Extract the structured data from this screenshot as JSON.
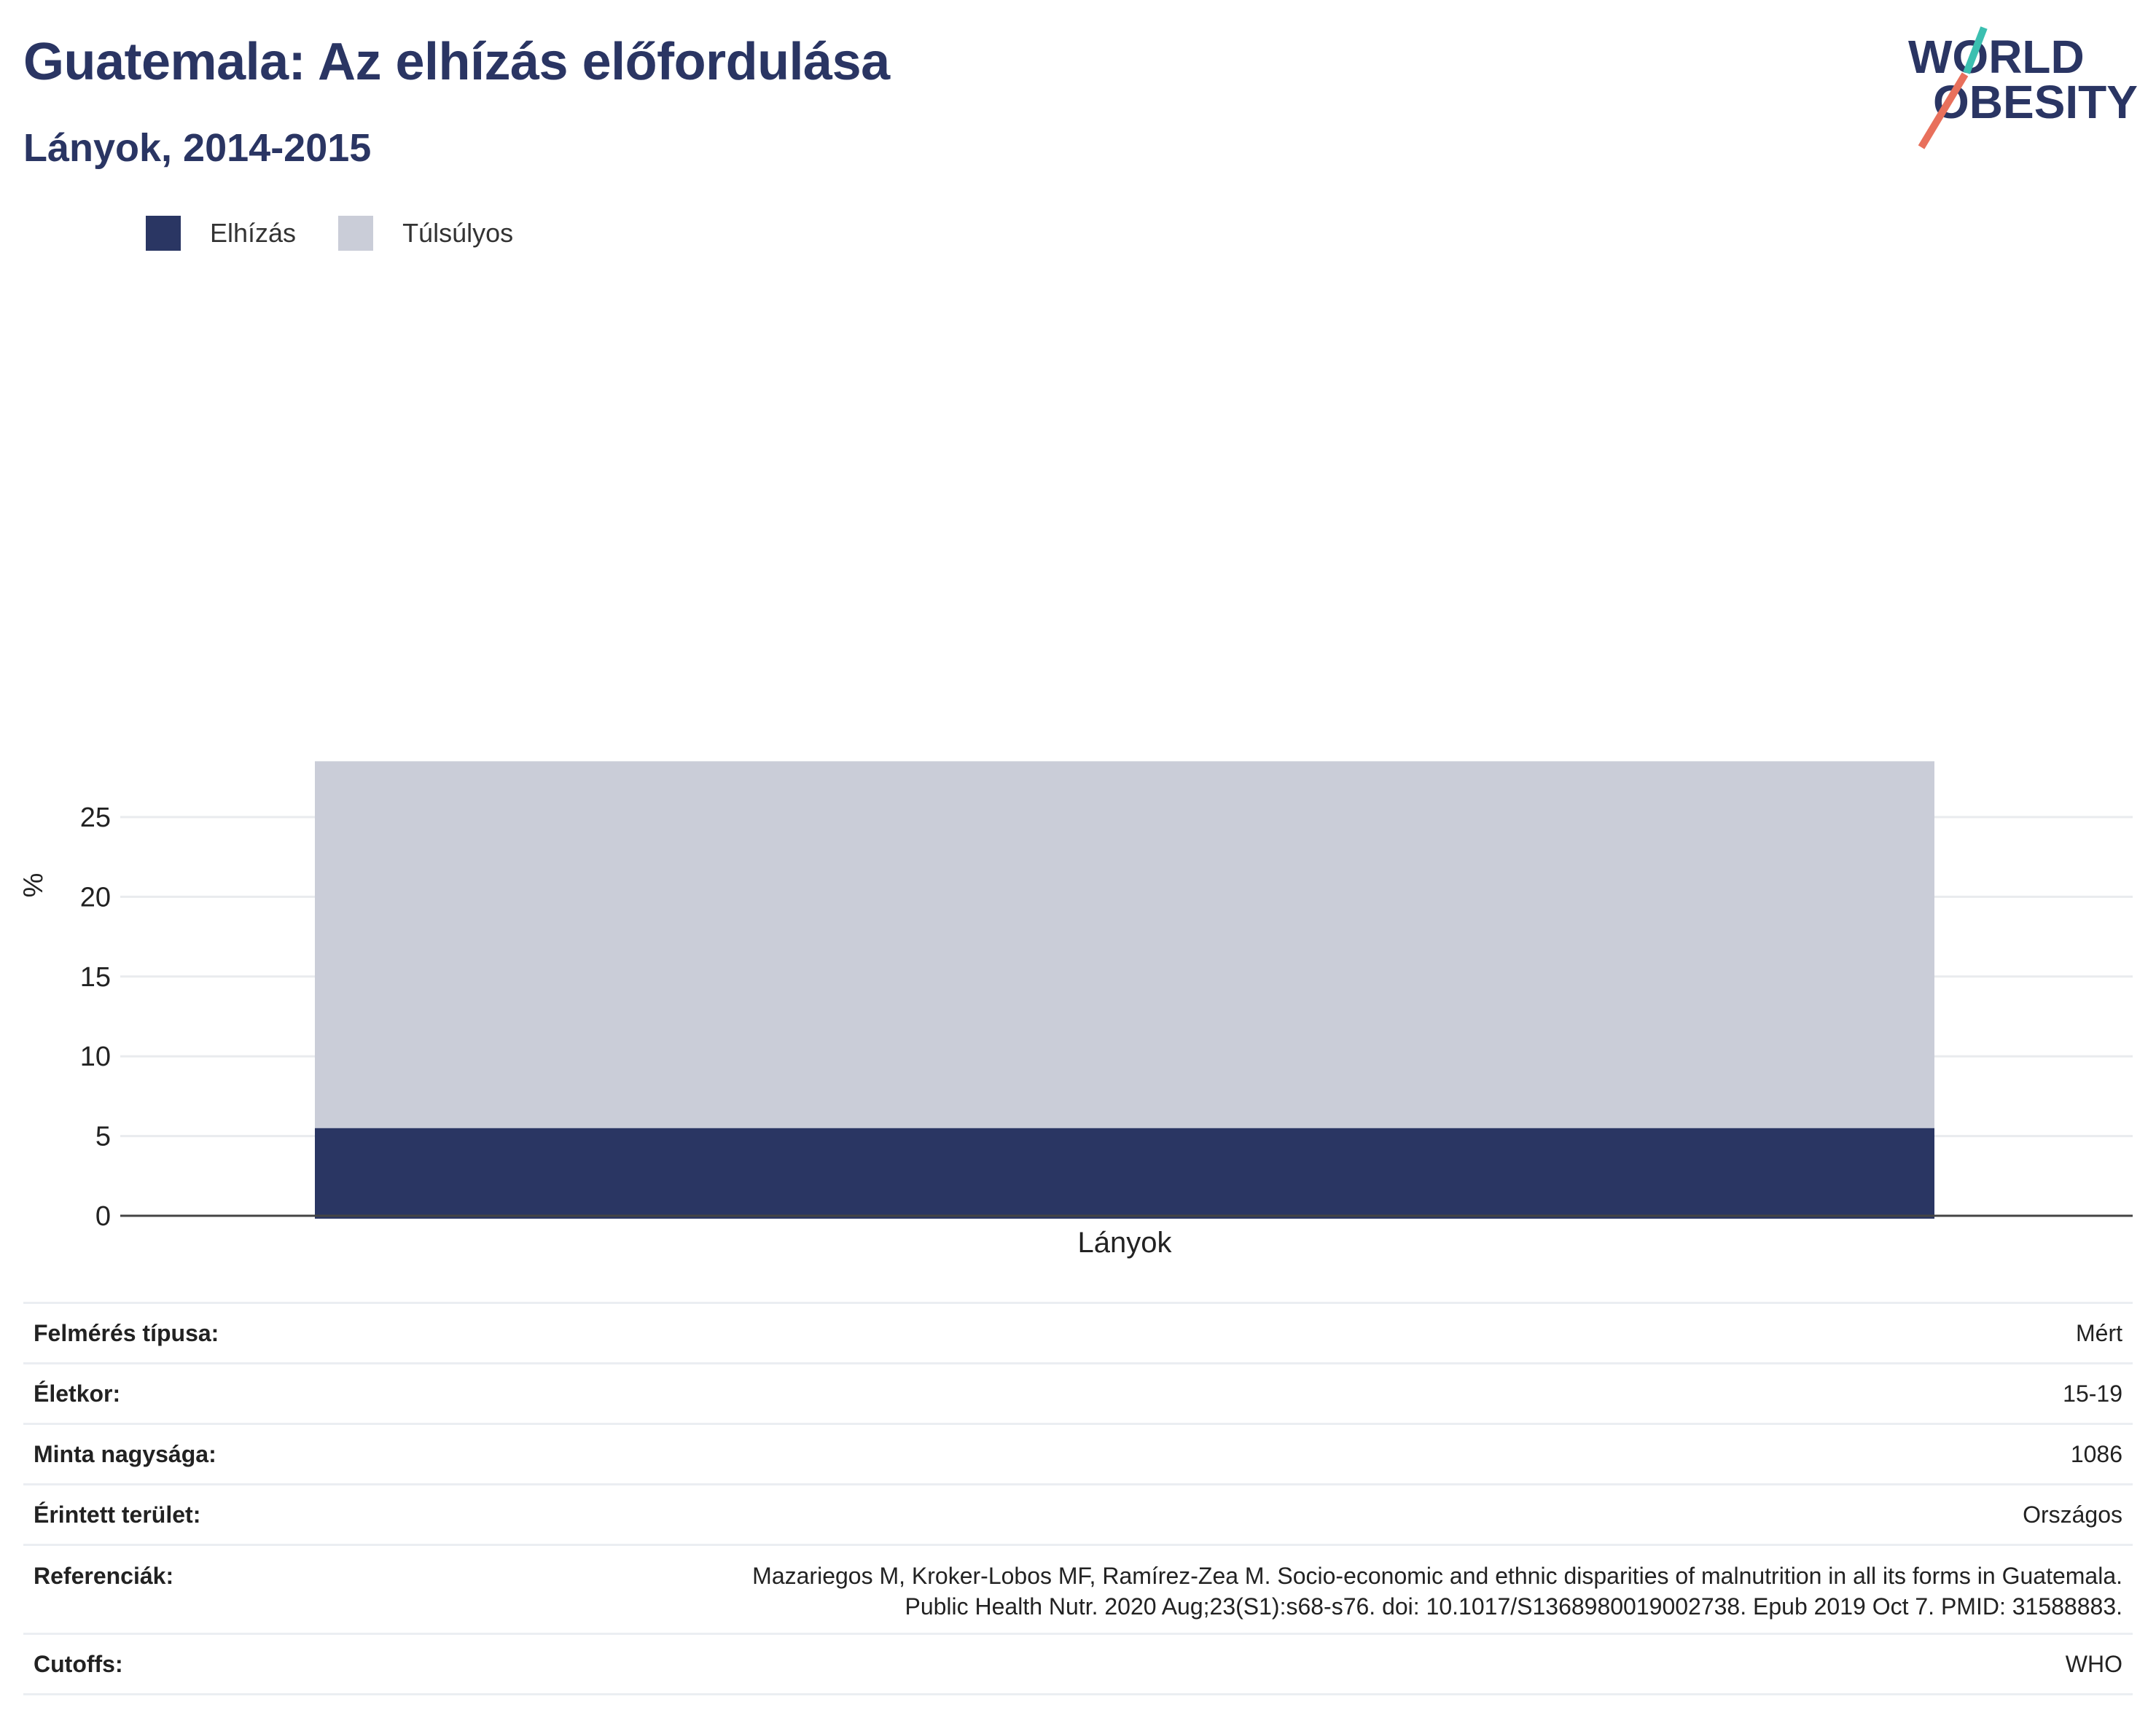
{
  "header": {
    "title": "Guatemala: Az elhízás előfordulása",
    "subtitle": "Lányok, 2014-2015"
  },
  "logo": {
    "line1": "WORLD",
    "line2": "OBESITY"
  },
  "legend": [
    {
      "label": "Elhízás",
      "color": "#2a3663"
    },
    {
      "label": "Túlsúlyos",
      "color": "#cacdd8"
    }
  ],
  "chart_data": {
    "type": "bar",
    "stacked": true,
    "categories": [
      "Lányok"
    ],
    "series": [
      {
        "name": "Elhízás",
        "values": [
          5.5
        ],
        "color": "#2a3663"
      },
      {
        "name": "Túlsúlyos",
        "values": [
          23.0
        ],
        "color": "#cacdd8"
      }
    ],
    "xlabel": "",
    "ylabel": "%",
    "ylim": [
      0,
      29
    ],
    "yticks": [
      "0",
      "5",
      "10",
      "15",
      "20",
      "25"
    ],
    "grid": true,
    "legend_position": "top-left"
  },
  "details": [
    {
      "label": "Felmérés típusa:",
      "value": "Mért"
    },
    {
      "label": "Életkor:",
      "value": "15-19"
    },
    {
      "label": "Minta nagysága:",
      "value": "1086"
    },
    {
      "label": "Érintett terület:",
      "value": "Országos"
    },
    {
      "label": "Referenciák:",
      "value_lines": [
        "Mazariegos M, Kroker-Lobos MF, Ramírez-Zea M. Socio-economic and ethnic disparities of malnutrition in all its forms in Guatemala.",
        "Public Health Nutr. 2020 Aug;23(S1):s68-s76. doi: 10.1017/S1368980019002738. Epub 2019 Oct 7. PMID: 31588883."
      ]
    },
    {
      "label": "Cutoffs:",
      "value": "WHO"
    }
  ]
}
